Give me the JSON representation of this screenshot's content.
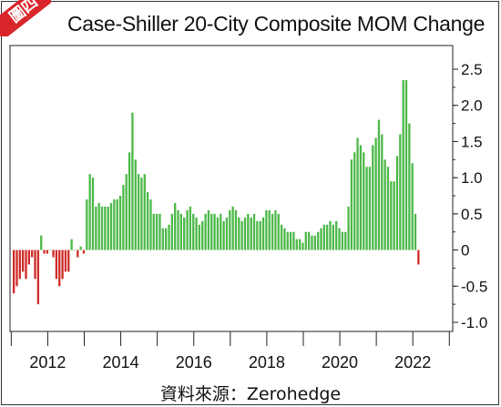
{
  "badge": "圖四",
  "source_line": "資料來源：Zerohedge",
  "colors": {
    "positive": "#4cb848",
    "negative": "#cf2a27",
    "badge": "#d8262b"
  },
  "chart_data": {
    "type": "bar",
    "title": "Case-Shiller 20-City Composite MOM Change",
    "x_ticks": [
      "2012",
      "2014",
      "2016",
      "2018",
      "2020",
      "2022"
    ],
    "y_ticks": [
      "2.5",
      "2.0",
      "1.5",
      "1.0",
      "0.5",
      "0",
      "-0.5",
      "-1.0"
    ],
    "ylim": [
      -1.1,
      2.6
    ],
    "x_start": "2011-01",
    "grid": false,
    "values": [
      -0.6,
      -0.5,
      -0.4,
      -0.3,
      -0.4,
      -0.2,
      -0.1,
      -0.4,
      -0.75,
      0.2,
      -0.05,
      -0.05,
      0.0,
      -0.1,
      -0.4,
      -0.5,
      -0.4,
      -0.3,
      -0.3,
      0.15,
      0.0,
      -0.1,
      0.05,
      -0.05,
      0.7,
      1.05,
      1.0,
      0.6,
      0.65,
      0.6,
      0.6,
      0.6,
      0.65,
      0.7,
      0.7,
      0.75,
      0.9,
      1.05,
      1.35,
      1.9,
      1.25,
      1.05,
      1.0,
      1.05,
      0.8,
      0.7,
      0.5,
      0.5,
      0.5,
      0.3,
      0.3,
      0.35,
      0.5,
      0.65,
      0.55,
      0.5,
      0.45,
      0.55,
      0.6,
      0.5,
      0.45,
      0.35,
      0.4,
      0.5,
      0.55,
      0.5,
      0.5,
      0.45,
      0.5,
      0.4,
      0.45,
      0.55,
      0.6,
      0.55,
      0.45,
      0.4,
      0.45,
      0.5,
      0.45,
      0.5,
      0.4,
      0.4,
      0.45,
      0.55,
      0.55,
      0.5,
      0.55,
      0.5,
      0.35,
      0.3,
      0.25,
      0.25,
      0.25,
      0.15,
      0.15,
      0.1,
      0.25,
      0.25,
      0.2,
      0.2,
      0.25,
      0.3,
      0.35,
      0.35,
      0.4,
      0.35,
      0.4,
      0.3,
      0.25,
      0.25,
      0.6,
      1.25,
      1.35,
      1.55,
      1.45,
      1.35,
      1.15,
      1.15,
      1.45,
      1.55,
      1.8,
      1.6,
      1.25,
      1.15,
      0.95,
      0.95,
      1.3,
      1.6,
      2.35,
      2.35,
      1.75,
      1.2,
      0.5,
      -0.2
    ]
  }
}
